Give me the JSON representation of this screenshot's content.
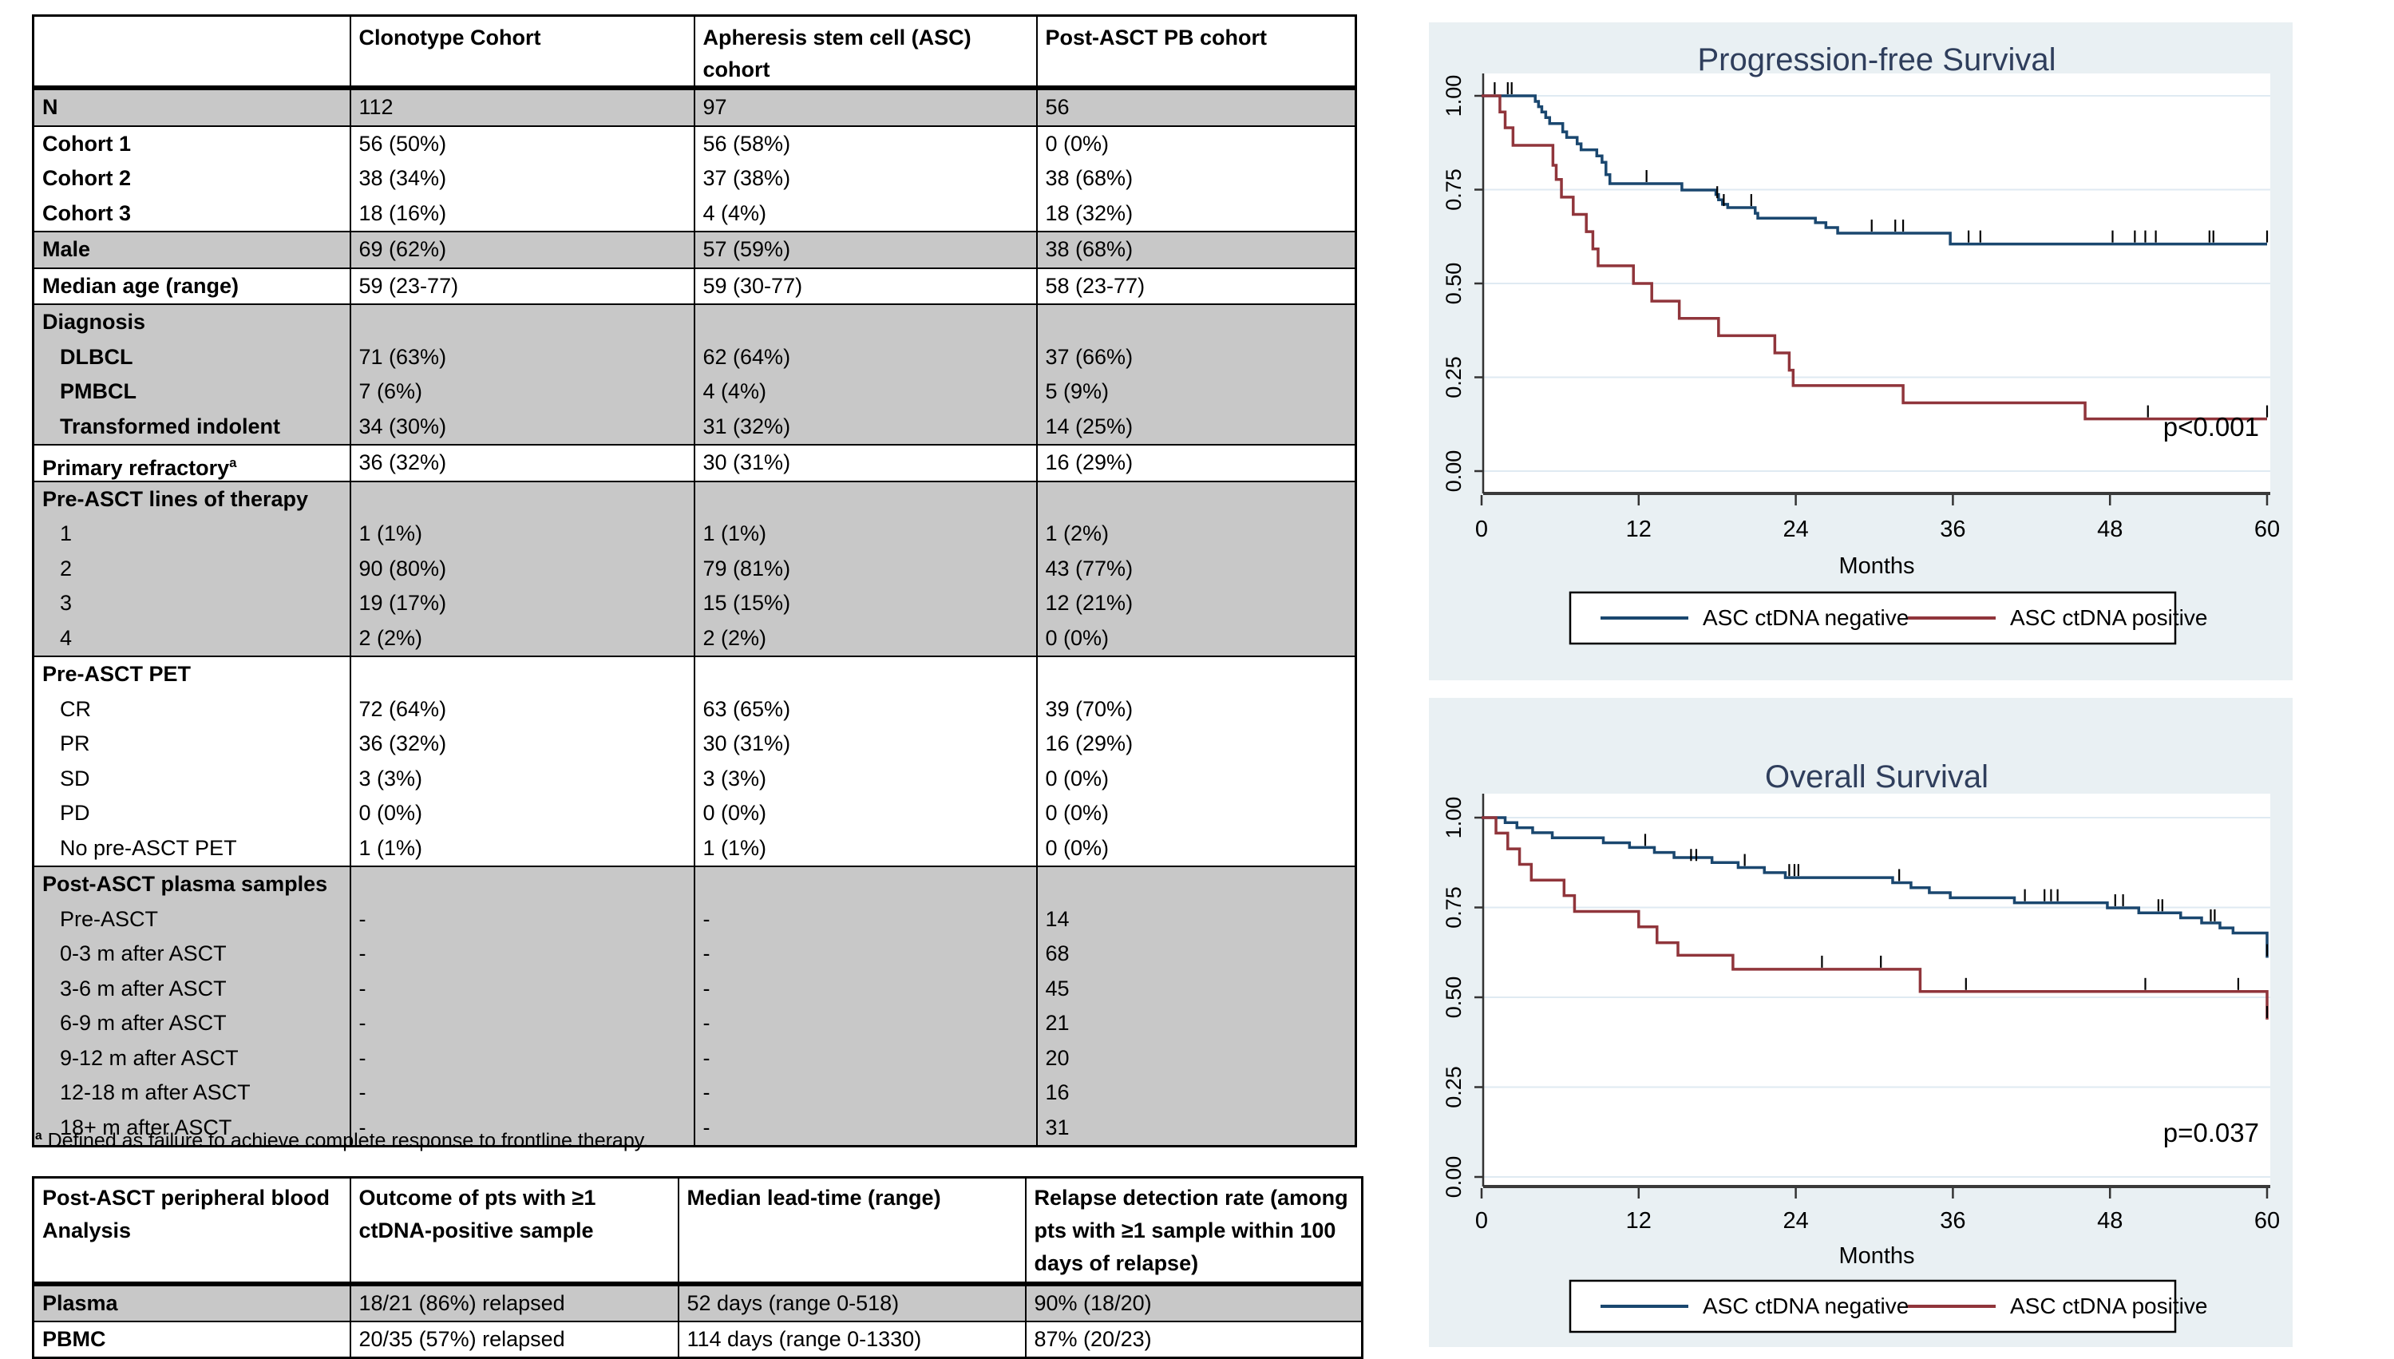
{
  "table1": {
    "columns": [
      "",
      "Clonotype Cohort",
      "Apheresis stem cell (ASC) cohort",
      "Post-ASCT PB cohort"
    ],
    "footnote_marker": "a",
    "footnote_text": " Defined as failure to achieve complete response to frontline therapy.",
    "row_shading_color": "#c8c8c8",
    "blocks": [
      {
        "shade": "gray",
        "rows": [
          {
            "label": "N",
            "bold": true,
            "values": [
              "112",
              "97",
              "56"
            ]
          }
        ]
      },
      {
        "shade": "white",
        "rows": [
          {
            "label": "Cohort 1",
            "bold": true,
            "values": [
              "56 (50%)",
              "56 (58%)",
              "0 (0%)"
            ]
          },
          {
            "label": "Cohort 2",
            "bold": true,
            "values": [
              "38 (34%)",
              "37 (38%)",
              "38 (68%)"
            ]
          },
          {
            "label": "Cohort 3",
            "bold": true,
            "values": [
              "18 (16%)",
              "4 (4%)",
              "18 (32%)"
            ]
          }
        ]
      },
      {
        "shade": "gray",
        "rows": [
          {
            "label": "Male",
            "bold": true,
            "values": [
              "69 (62%)",
              "57 (59%)",
              "38 (68%)"
            ]
          }
        ]
      },
      {
        "shade": "white",
        "rows": [
          {
            "label": "Median age (range)",
            "bold": true,
            "values": [
              "59 (23-77)",
              "59 (30-77)",
              "58 (23-77)"
            ]
          }
        ]
      },
      {
        "shade": "gray",
        "rows": [
          {
            "label": "Diagnosis",
            "bold": true,
            "values": [
              "",
              "",
              ""
            ]
          },
          {
            "label": "DLBCL",
            "bold": true,
            "indent": true,
            "values": [
              "71 (63%)",
              "62 (64%)",
              "37 (66%)"
            ]
          },
          {
            "label": "PMBCL",
            "bold": true,
            "indent": true,
            "values": [
              "7 (6%)",
              "4 (4%)",
              "5 (9%)"
            ]
          },
          {
            "label": "Transformed indolent",
            "bold": true,
            "indent": true,
            "values": [
              "34 (30%)",
              "31 (32%)",
              "14 (25%)"
            ]
          }
        ]
      },
      {
        "shade": "white",
        "rows": [
          {
            "label": "Primary refractory",
            "sup": "a",
            "bold": true,
            "values": [
              "36 (32%)",
              "30 (31%)",
              "16 (29%)"
            ]
          }
        ]
      },
      {
        "shade": "gray",
        "rows": [
          {
            "label": "Pre-ASCT lines of therapy",
            "bold": true,
            "values": [
              "",
              "",
              ""
            ]
          },
          {
            "label": "1",
            "indent": true,
            "values": [
              "1 (1%)",
              "1 (1%)",
              "1 (2%)"
            ]
          },
          {
            "label": "2",
            "indent": true,
            "values": [
              "90 (80%)",
              "79 (81%)",
              "43 (77%)"
            ]
          },
          {
            "label": "3",
            "indent": true,
            "values": [
              "19 (17%)",
              "15 (15%)",
              "12 (21%)"
            ]
          },
          {
            "label": "4",
            "indent": true,
            "values": [
              "2 (2%)",
              "2 (2%)",
              "0 (0%)"
            ]
          }
        ]
      },
      {
        "shade": "white",
        "rows": [
          {
            "label": "Pre-ASCT PET",
            "bold": true,
            "values": [
              "",
              "",
              ""
            ]
          },
          {
            "label": "CR",
            "indent": true,
            "values": [
              "72 (64%)",
              "63 (65%)",
              "39 (70%)"
            ]
          },
          {
            "label": "PR",
            "indent": true,
            "values": [
              "36 (32%)",
              "30 (31%)",
              "16 (29%)"
            ]
          },
          {
            "label": "SD",
            "indent": true,
            "values": [
              "3 (3%)",
              "3 (3%)",
              "0 (0%)"
            ]
          },
          {
            "label": "PD",
            "indent": true,
            "values": [
              "0 (0%)",
              "0 (0%)",
              "0 (0%)"
            ]
          },
          {
            "label": "No pre-ASCT PET",
            "indent": true,
            "values": [
              "1 (1%)",
              "1 (1%)",
              "0 (0%)"
            ]
          }
        ]
      },
      {
        "shade": "gray",
        "rows": [
          {
            "label": "Post-ASCT plasma samples",
            "bold": true,
            "values": [
              "",
              "",
              ""
            ]
          },
          {
            "label": "Pre-ASCT",
            "indent": true,
            "values": [
              "-",
              "-",
              "14"
            ]
          },
          {
            "label": "0-3 m after ASCT",
            "indent": true,
            "values": [
              "-",
              "-",
              "68"
            ]
          },
          {
            "label": "3-6 m after ASCT",
            "indent": true,
            "values": [
              "-",
              "-",
              "45"
            ]
          },
          {
            "label": "6-9 m after ASCT",
            "indent": true,
            "values": [
              "-",
              "-",
              "21"
            ]
          },
          {
            "label": "9-12 m after ASCT",
            "indent": true,
            "values": [
              "-",
              "-",
              "20"
            ]
          },
          {
            "label": "12-18 m after ASCT",
            "indent": true,
            "values": [
              "-",
              "-",
              "16"
            ]
          },
          {
            "label": "18+ m after ASCT",
            "indent": true,
            "values": [
              "-",
              "-",
              "31"
            ]
          }
        ]
      }
    ]
  },
  "table2": {
    "columns": [
      "Post-ASCT peripheral blood Analysis",
      "Outcome of pts with ≥1 ctDNA-positive sample",
      "Median lead-time (range)",
      "Relapse detection rate (among pts with ≥1 sample within 100 days of relapse)"
    ],
    "rows": [
      {
        "label": "Plasma",
        "shade": "gray",
        "values": [
          "18/21 (86%) relapsed",
          "52 days (range 0-518)",
          "90% (18/20)"
        ]
      },
      {
        "label": "PBMC",
        "shade": "white",
        "values": [
          "20/35 (57%) relapsed",
          "114 days (range 0-1330)",
          "87% (20/23)"
        ]
      }
    ]
  },
  "chart_style": {
    "panel_bg": "#e9f0f3",
    "plot_bg": "#ffffff",
    "grid_color": "#dfeaf2",
    "axis_color": "#3a3a3a",
    "title_color": "#2f3e5c",
    "censor_color": "#000000",
    "negative_color": "#1a476f",
    "positive_color": "#90353b"
  },
  "chart_data": [
    {
      "type": "line",
      "title": "Progression-free Survival",
      "xlabel": "Months",
      "ylabel": "",
      "x_ticks": [
        0,
        12,
        24,
        36,
        48,
        60
      ],
      "y_ticks": [
        "0.00",
        "0.25",
        "0.50",
        "0.75",
        "1.00"
      ],
      "xlim": [
        0,
        60
      ],
      "ylim": [
        0,
        1.0
      ],
      "grid": true,
      "legend_position": "bottom",
      "p_value": "p<0.001",
      "series": [
        {
          "name": "ASC ctDNA negative",
          "color": "#1a476f",
          "steps": [
            [
              0,
              1
            ],
            [
              3.9,
              1
            ],
            [
              4.1,
              0.985
            ],
            [
              4.35,
              0.971
            ],
            [
              4.6,
              0.957
            ],
            [
              4.9,
              0.942
            ],
            [
              5.2,
              0.926
            ],
            [
              6.2,
              0.904
            ],
            [
              6.5,
              0.889
            ],
            [
              7.3,
              0.872
            ],
            [
              7.6,
              0.856
            ],
            [
              8.8,
              0.84
            ],
            [
              9.2,
              0.823
            ],
            [
              9.5,
              0.79
            ],
            [
              9.8,
              0.766
            ],
            [
              15.3,
              0.749
            ],
            [
              17.9,
              0.737
            ],
            [
              18.1,
              0.723
            ],
            [
              18.4,
              0.711
            ],
            [
              18.8,
              0.702
            ],
            [
              20.9,
              0.687
            ],
            [
              21.1,
              0.674
            ],
            [
              25.5,
              0.662
            ],
            [
              26.3,
              0.649
            ],
            [
              27.2,
              0.634
            ],
            [
              35.8,
              0.605
            ],
            [
              60,
              0.605
            ]
          ],
          "censors": [
            [
              1.0,
              1
            ],
            [
              2.0,
              1
            ],
            [
              2.3,
              1
            ],
            [
              12.6,
              0.766
            ],
            [
              18.0,
              0.723
            ],
            [
              18.5,
              0.702
            ],
            [
              20.6,
              0.702
            ],
            [
              29.8,
              0.634
            ],
            [
              31.6,
              0.634
            ],
            [
              32.2,
              0.634
            ],
            [
              37.2,
              0.605
            ],
            [
              38.1,
              0.605
            ],
            [
              48.2,
              0.605
            ],
            [
              49.9,
              0.605
            ],
            [
              50.7,
              0.605
            ],
            [
              51.5,
              0.605
            ],
            [
              55.6,
              0.605
            ],
            [
              55.9,
              0.605
            ],
            [
              60,
              0.605
            ]
          ]
        },
        {
          "name": "ASC ctDNA positive",
          "color": "#90353b",
          "steps": [
            [
              0,
              1
            ],
            [
              1.4,
              0.957
            ],
            [
              1.8,
              0.915
            ],
            [
              2.4,
              0.868
            ],
            [
              5.45,
              0.815
            ],
            [
              5.7,
              0.777
            ],
            [
              6.1,
              0.73
            ],
            [
              7.0,
              0.684
            ],
            [
              8.0,
              0.638
            ],
            [
              8.5,
              0.592
            ],
            [
              8.9,
              0.547
            ],
            [
              11.6,
              0.5
            ],
            [
              13.0,
              0.453
            ],
            [
              15.1,
              0.407
            ],
            [
              18.1,
              0.361
            ],
            [
              22.4,
              0.315
            ],
            [
              23.5,
              0.269
            ],
            [
              23.8,
              0.228
            ],
            [
              32.2,
              0.182
            ],
            [
              46.1,
              0.139
            ],
            [
              60,
              0.139
            ]
          ],
          "censors": [
            [
              50.9,
              0.139
            ],
            [
              60,
              0.139
            ]
          ]
        }
      ]
    },
    {
      "type": "line",
      "title": "Overall Survival",
      "xlabel": "Months",
      "ylabel": "",
      "x_ticks": [
        0,
        12,
        24,
        36,
        48,
        60
      ],
      "y_ticks": [
        "0.00",
        "0.25",
        "0.50",
        "0.75",
        "1.00"
      ],
      "xlim": [
        0,
        60
      ],
      "ylim": [
        0,
        1.0
      ],
      "grid": true,
      "legend_position": "bottom",
      "p_value": "p=0.037",
      "series": [
        {
          "name": "ASC ctDNA negative",
          "color": "#1a476f",
          "steps": [
            [
              0,
              1
            ],
            [
              1.5,
              1
            ],
            [
              1.8,
              0.986
            ],
            [
              2.7,
              0.972
            ],
            [
              3.9,
              0.958
            ],
            [
              5.4,
              0.944
            ],
            [
              9.3,
              0.93
            ],
            [
              11.3,
              0.917
            ],
            [
              13.2,
              0.903
            ],
            [
              14.7,
              0.889
            ],
            [
              17.6,
              0.875
            ],
            [
              19.6,
              0.861
            ],
            [
              21.6,
              0.847
            ],
            [
              23.2,
              0.833
            ],
            [
              31.4,
              0.819
            ],
            [
              32.8,
              0.805
            ],
            [
              34.2,
              0.791
            ],
            [
              35.8,
              0.777
            ],
            [
              40.7,
              0.763
            ],
            [
              47.8,
              0.749
            ],
            [
              50.2,
              0.735
            ],
            [
              53.4,
              0.721
            ],
            [
              55.0,
              0.707
            ],
            [
              56.4,
              0.693
            ],
            [
              57.4,
              0.679
            ],
            [
              60,
              0.679
            ],
            [
              60,
              0.61
            ]
          ],
          "censors": [
            [
              12.5,
              0.917
            ],
            [
              16.0,
              0.875
            ],
            [
              16.4,
              0.875
            ],
            [
              20.1,
              0.861
            ],
            [
              23.5,
              0.833
            ],
            [
              23.9,
              0.833
            ],
            [
              24.2,
              0.833
            ],
            [
              31.9,
              0.819
            ],
            [
              41.5,
              0.763
            ],
            [
              43.0,
              0.763
            ],
            [
              43.5,
              0.763
            ],
            [
              44.0,
              0.763
            ],
            [
              48.4,
              0.749
            ],
            [
              49.0,
              0.749
            ],
            [
              51.7,
              0.735
            ],
            [
              52.0,
              0.735
            ],
            [
              55.7,
              0.707
            ],
            [
              56.0,
              0.707
            ],
            [
              60,
              0.61
            ]
          ]
        },
        {
          "name": "ASC ctDNA positive",
          "color": "#90353b",
          "steps": [
            [
              0,
              1
            ],
            [
              0.7,
              1
            ],
            [
              1.1,
              0.957
            ],
            [
              2.0,
              0.913
            ],
            [
              2.9,
              0.87
            ],
            [
              3.8,
              0.826
            ],
            [
              6.3,
              0.783
            ],
            [
              7.1,
              0.739
            ],
            [
              12.0,
              0.696
            ],
            [
              13.4,
              0.652
            ],
            [
              15.0,
              0.617
            ],
            [
              19.2,
              0.578
            ],
            [
              33.5,
              0.516
            ],
            [
              60,
              0.516
            ],
            [
              60,
              0.438
            ]
          ],
          "censors": [
            [
              26.0,
              0.578
            ],
            [
              30.5,
              0.578
            ],
            [
              37.0,
              0.516
            ],
            [
              50.7,
              0.516
            ],
            [
              57.8,
              0.516
            ],
            [
              60,
              0.438
            ]
          ]
        }
      ]
    }
  ]
}
